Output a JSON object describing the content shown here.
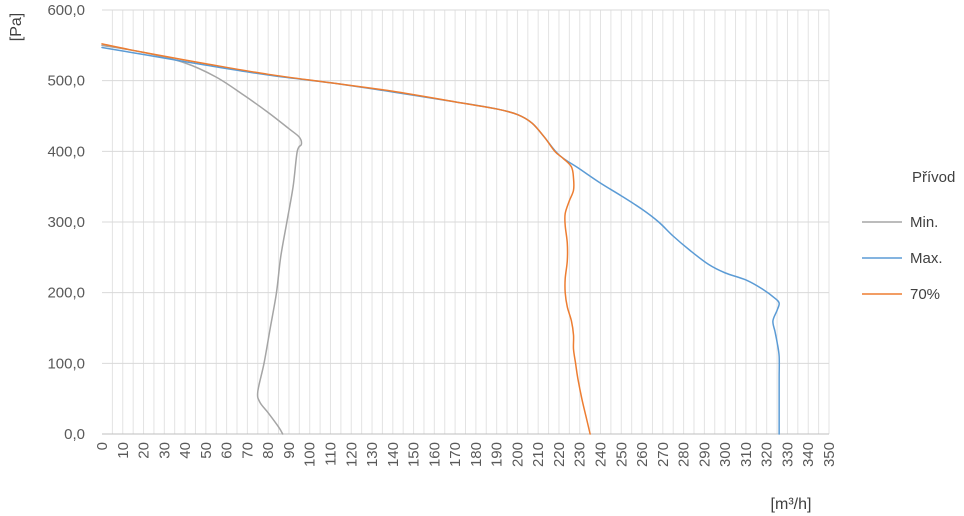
{
  "chart_data": {
    "type": "line",
    "xlabel": "[m³/h]",
    "ylabel": "[Pa]",
    "xlim": [
      0,
      350
    ],
    "ylim": [
      0,
      600
    ],
    "x_ticks": [
      "0",
      "10",
      "20",
      "30",
      "40",
      "50",
      "60",
      "70",
      "80",
      "90",
      "100",
      "110",
      "120",
      "130",
      "140",
      "150",
      "160",
      "170",
      "180",
      "190",
      "200",
      "210",
      "220",
      "230",
      "240",
      "250",
      "260",
      "270",
      "280",
      "290",
      "300",
      "310",
      "320",
      "330",
      "340",
      "350"
    ],
    "y_ticks": [
      "0,0",
      "100,0",
      "200,0",
      "300,0",
      "400,0",
      "500,0",
      "600,0"
    ],
    "grid": true,
    "legend_title": "Přívod",
    "legend_position": "right",
    "series": [
      {
        "name": "Min.",
        "color": "#a5a5a5",
        "points": [
          [
            0,
            550
          ],
          [
            20,
            540
          ],
          [
            40,
            525
          ],
          [
            55,
            505
          ],
          [
            68,
            480
          ],
          [
            80,
            455
          ],
          [
            90,
            432
          ],
          [
            95,
            420
          ],
          [
            96,
            410
          ],
          [
            94,
            400
          ],
          [
            92,
            350
          ],
          [
            89,
            300
          ],
          [
            86,
            250
          ],
          [
            84,
            200
          ],
          [
            81,
            150
          ],
          [
            78,
            100
          ],
          [
            75,
            60
          ],
          [
            76,
            45
          ],
          [
            80,
            30
          ],
          [
            85,
            10
          ],
          [
            87,
            0
          ]
        ]
      },
      {
        "name": "Max.",
        "color": "#5b9bd5",
        "points": [
          [
            0,
            547
          ],
          [
            20,
            537
          ],
          [
            50,
            522
          ],
          [
            80,
            508
          ],
          [
            110,
            497
          ],
          [
            140,
            484
          ],
          [
            170,
            470
          ],
          [
            190,
            460
          ],
          [
            200,
            452
          ],
          [
            207,
            440
          ],
          [
            213,
            420
          ],
          [
            220,
            395
          ],
          [
            230,
            375
          ],
          [
            240,
            355
          ],
          [
            250,
            337
          ],
          [
            260,
            318
          ],
          [
            268,
            300
          ],
          [
            275,
            280
          ],
          [
            283,
            260
          ],
          [
            292,
            240
          ],
          [
            300,
            228
          ],
          [
            310,
            218
          ],
          [
            318,
            205
          ],
          [
            324,
            192
          ],
          [
            326,
            185
          ],
          [
            325,
            175
          ],
          [
            323,
            160
          ],
          [
            324,
            145
          ],
          [
            325,
            130
          ],
          [
            326,
            110
          ],
          [
            326,
            80
          ],
          [
            326,
            50
          ],
          [
            326,
            20
          ],
          [
            326,
            0
          ]
        ]
      },
      {
        "name": "70%",
        "color": "#ed7d31",
        "points": [
          [
            0,
            552
          ],
          [
            20,
            540
          ],
          [
            50,
            524
          ],
          [
            80,
            509
          ],
          [
            110,
            497
          ],
          [
            140,
            485
          ],
          [
            170,
            470
          ],
          [
            190,
            460
          ],
          [
            200,
            452
          ],
          [
            207,
            440
          ],
          [
            213,
            420
          ],
          [
            218,
            400
          ],
          [
            222,
            390
          ],
          [
            226,
            378
          ],
          [
            227,
            362
          ],
          [
            227,
            345
          ],
          [
            225,
            330
          ],
          [
            223,
            312
          ],
          [
            223,
            295
          ],
          [
            224,
            270
          ],
          [
            224,
            245
          ],
          [
            223,
            220
          ],
          [
            223,
            200
          ],
          [
            224,
            180
          ],
          [
            226,
            160
          ],
          [
            227,
            140
          ],
          [
            227,
            120
          ],
          [
            228,
            100
          ],
          [
            229,
            80
          ],
          [
            231,
            50
          ],
          [
            233,
            25
          ],
          [
            235,
            0
          ]
        ]
      }
    ]
  }
}
